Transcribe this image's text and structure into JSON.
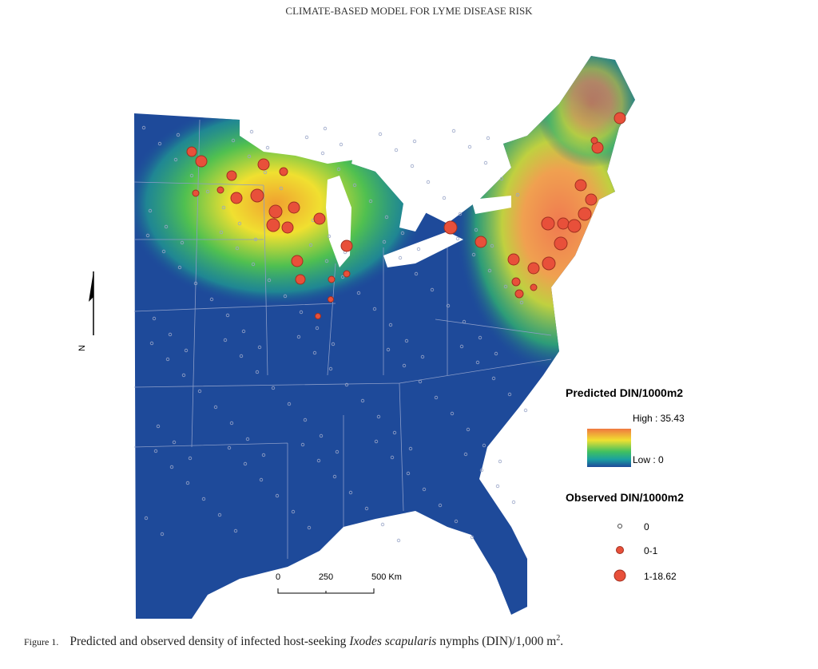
{
  "header": {
    "title": "CLIMATE-BASED MODEL FOR LYME DISEASE RISK"
  },
  "north_arrow": {
    "label": "N"
  },
  "scale_bar": {
    "labels": [
      "0",
      "250",
      "500 Km"
    ]
  },
  "legend": {
    "predicted": {
      "title": "Predicted DIN/1000m2",
      "high": "High : 35.43",
      "low": "Low : 0"
    },
    "observed": {
      "title": "Observed DIN/1000m2",
      "classes": [
        "0",
        "0-1",
        "1-18.62"
      ]
    }
  },
  "caption": {
    "label": "Figure 1.",
    "text": "Predicted and observed density of infected host-seeking",
    "species": "Ixodes scapularis",
    "text_after": "nymphs (DIN)/1,000 m",
    "superscript": "2",
    "end": "."
  }
}
